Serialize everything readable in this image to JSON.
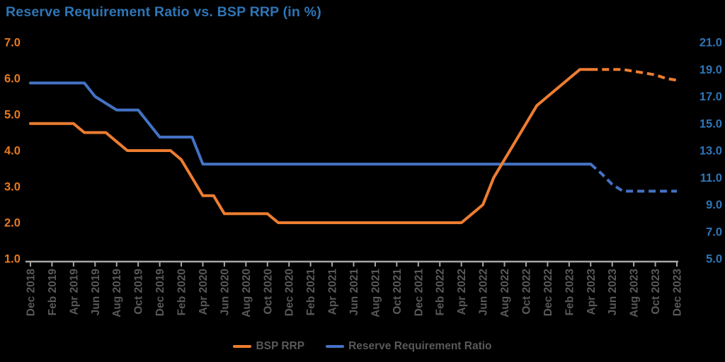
{
  "title": "Reserve Requirement Ratio vs. BSP RRP (in %)",
  "colors": {
    "background": "#000000",
    "title": "#2E75B6",
    "left_axis_labels": "#E8791E",
    "right_axis_labels": "#2E75B6",
    "x_axis_labels": "#595959",
    "axis_line": "#A6A6A6",
    "legend_text": "#595959",
    "bsp_rrp_line": "#ED7D31",
    "rrr_line": "#4472C4"
  },
  "legend": {
    "items": [
      {
        "label": "BSP RRP",
        "color": "#ED7D31"
      },
      {
        "label": "Reserve Requirement Ratio",
        "color": "#4472C4"
      }
    ]
  },
  "chart_data": {
    "type": "line",
    "title": "Reserve Requirement Ratio vs. BSP RRP (in %)",
    "background": "#000000",
    "grid": false,
    "legend_position": "bottom",
    "x_start": "Dec 2018",
    "x_end": "Dec 2023",
    "x_step_months": 1,
    "x_tick_labels": [
      "Dec 2018",
      "Feb 2019",
      "Apr 2019",
      "Jun 2019",
      "Aug 2019",
      "Oct 2019",
      "Dec 2019",
      "Feb 2020",
      "Apr 2020",
      "Jun 2020",
      "Aug 2020",
      "Oct 2020",
      "Dec 2020",
      "Feb 2021",
      "Apr 2021",
      "Jun 2021",
      "Aug 2021",
      "Oct 2021",
      "Dec 2021",
      "Feb 2022",
      "Apr 2022",
      "Jun 2022",
      "Aug 2022",
      "Oct 2022",
      "Dec 2022",
      "Feb 2023",
      "Apr 2023",
      "Jun 2023",
      "Aug 2023",
      "Oct 2023",
      "Dec 2023"
    ],
    "months_per_tick": 2,
    "left_axis": {
      "min": 1.0,
      "max": 7.0,
      "tick_labels": [
        "7.0",
        "6.0",
        "5.0",
        "4.0",
        "3.0",
        "2.0",
        "1.0"
      ]
    },
    "right_axis": {
      "min": 5.0,
      "max": 21.0,
      "tick_labels": [
        "21.0",
        "19.0",
        "17.0",
        "15.0",
        "13.0",
        "11.0",
        "9.0",
        "7.0",
        "5.0"
      ]
    },
    "series": [
      {
        "name": "BSP RRP",
        "axis": "left",
        "color": "#ED7D31",
        "dashed_from_index": 52,
        "values": [
          4.75,
          4.75,
          4.75,
          4.75,
          4.75,
          4.5,
          4.5,
          4.5,
          4.25,
          4.0,
          4.0,
          4.0,
          4.0,
          4.0,
          3.75,
          3.25,
          2.75,
          2.75,
          2.25,
          2.25,
          2.25,
          2.25,
          2.25,
          2.0,
          2.0,
          2.0,
          2.0,
          2.0,
          2.0,
          2.0,
          2.0,
          2.0,
          2.0,
          2.0,
          2.0,
          2.0,
          2.0,
          2.0,
          2.0,
          2.0,
          2.0,
          2.25,
          2.5,
          3.25,
          3.75,
          4.25,
          4.75,
          5.25,
          5.5,
          5.75,
          6.0,
          6.25,
          6.25,
          6.25,
          6.25,
          6.25,
          6.2,
          6.15,
          6.1,
          6.0,
          5.95
        ]
      },
      {
        "name": "Reserve Requirement Ratio",
        "axis": "right",
        "color": "#4472C4",
        "dashed_from_index": 52,
        "values": [
          18,
          18,
          18,
          18,
          18,
          18,
          17,
          16.5,
          16,
          16,
          16,
          15,
          14,
          14,
          14,
          14,
          12,
          12,
          12,
          12,
          12,
          12,
          12,
          12,
          12,
          12,
          12,
          12,
          12,
          12,
          12,
          12,
          12,
          12,
          12,
          12,
          12,
          12,
          12,
          12,
          12,
          12,
          12,
          12,
          12,
          12,
          12,
          12,
          12,
          12,
          12,
          12,
          12,
          11.3,
          10.5,
          10,
          10,
          10,
          10,
          10,
          10
        ]
      }
    ]
  }
}
